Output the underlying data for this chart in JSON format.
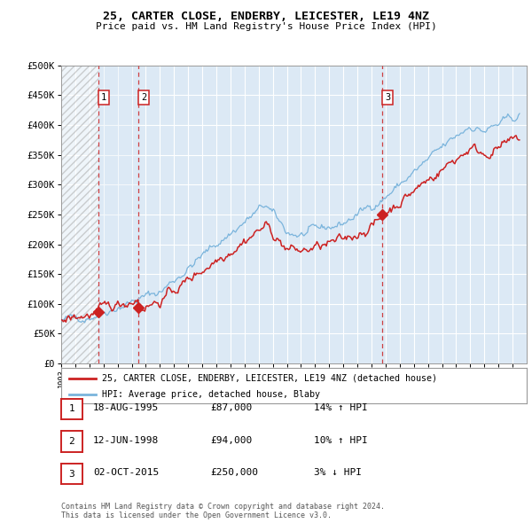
{
  "title": "25, CARTER CLOSE, ENDERBY, LEICESTER, LE19 4NZ",
  "subtitle": "Price paid vs. HM Land Registry's House Price Index (HPI)",
  "background_color": "#ffffff",
  "plot_bg_color": "#dce9f5",
  "grid_color": "#ffffff",
  "hpi_color": "#7ab4dc",
  "price_color": "#cc2222",
  "hatch_color": "#b8b8b8",
  "sale_points": [
    {
      "date": 1995.63,
      "price": 87000,
      "label": "1"
    },
    {
      "date": 1998.45,
      "price": 94000,
      "label": "2"
    },
    {
      "date": 2015.75,
      "price": 250000,
      "label": "3"
    }
  ],
  "vline_dates": [
    1995.63,
    1998.45,
    2015.75
  ],
  "legend_entries": [
    "25, CARTER CLOSE, ENDERBY, LEICESTER, LE19 4NZ (detached house)",
    "HPI: Average price, detached house, Blaby"
  ],
  "table_rows": [
    {
      "num": "1",
      "date": "18-AUG-1995",
      "price": "£87,000",
      "hpi": "14% ↑ HPI"
    },
    {
      "num": "2",
      "date": "12-JUN-1998",
      "price": "£94,000",
      "hpi": "10% ↑ HPI"
    },
    {
      "num": "3",
      "date": "02-OCT-2015",
      "price": "£250,000",
      "hpi": "3% ↓ HPI"
    }
  ],
  "footer": "Contains HM Land Registry data © Crown copyright and database right 2024.\nThis data is licensed under the Open Government Licence v3.0.",
  "xmin": 1993,
  "xmax": 2026,
  "ymin": 0,
  "ymax": 500000,
  "ytick_vals": [
    0,
    50000,
    100000,
    150000,
    200000,
    250000,
    300000,
    350000,
    400000,
    450000,
    500000
  ],
  "ytick_labels": [
    "£0",
    "£50K",
    "£100K",
    "£150K",
    "£200K",
    "£250K",
    "£300K",
    "£350K",
    "£400K",
    "£450K",
    "£500K"
  ]
}
